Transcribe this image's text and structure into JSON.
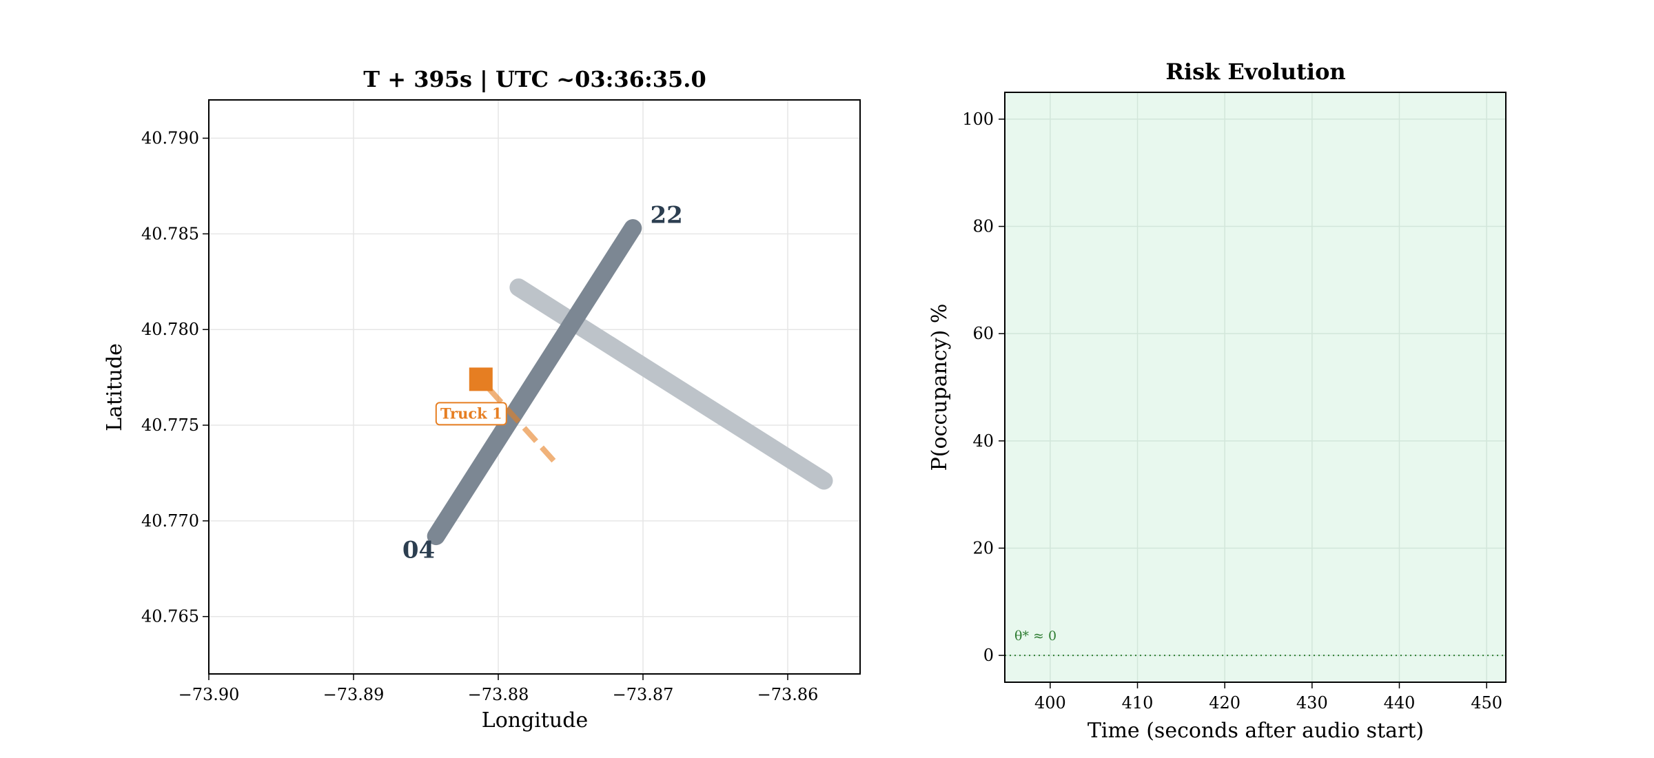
{
  "chart_data": [
    {
      "type": "scatter",
      "title": "T + 395s  |  UTC ~03:36:35.0",
      "xlabel": "Longitude",
      "ylabel": "Latitude",
      "xlim": [
        -73.9,
        -73.855
      ],
      "ylim": [
        40.762,
        40.792
      ],
      "xticks": [
        -73.9,
        -73.89,
        -73.88,
        -73.87,
        -73.86
      ],
      "xtick_labels": [
        "−73.90",
        "−73.89",
        "−73.88",
        "−73.87",
        "−73.86"
      ],
      "yticks": [
        40.765,
        40.77,
        40.775,
        40.78,
        40.785,
        40.79
      ],
      "ytick_labels": [
        "40.765",
        "40.770",
        "40.775",
        "40.780",
        "40.785",
        "40.790"
      ],
      "grid": true,
      "runways": [
        {
          "color": "#7c8793",
          "start": [
            -73.8843,
            40.7692
          ],
          "end": [
            -73.8707,
            40.7853
          ],
          "end_labels": [
            {
              "text": "04",
              "at": [
                -73.8855,
                40.7685
              ]
            },
            {
              "text": "22",
              "at": [
                -73.8695,
                40.786
              ]
            }
          ]
        },
        {
          "color": "#bdc3c9",
          "start": [
            -73.8786,
            40.7822
          ],
          "end": [
            -73.8575,
            40.7721
          ],
          "end_labels": []
        }
      ],
      "vehicles": [
        {
          "name": "Truck 1",
          "position": [
            -73.8812,
            40.7774
          ],
          "color": "#e67e22",
          "track_end": [
            -73.876,
            40.773
          ]
        }
      ]
    },
    {
      "type": "line",
      "title": "Risk Evolution",
      "xlabel": "Time (seconds after audio start)",
      "ylabel": "P(occupancy) %",
      "xlim": [
        394.8,
        452.2
      ],
      "ylim": [
        -5,
        105
      ],
      "xticks": [
        400,
        410,
        420,
        430,
        440,
        450
      ],
      "yticks": [
        0,
        20,
        40,
        60,
        80,
        100
      ],
      "grid": true,
      "background_color": "#e8f8ee",
      "threshold": {
        "value": 0,
        "label": "θ* ≈ 0",
        "color": "#2e7d32"
      },
      "series": []
    }
  ]
}
